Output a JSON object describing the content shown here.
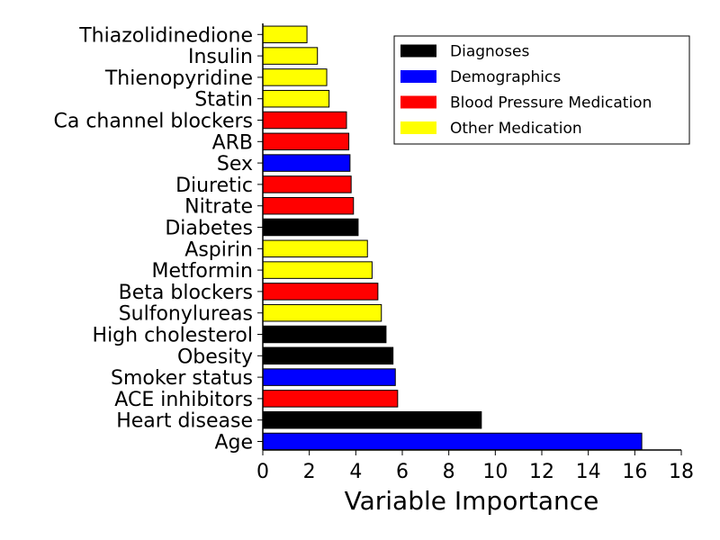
{
  "chart_data": {
    "type": "bar",
    "orientation": "horizontal",
    "title": "",
    "xlabel": "Variable Importance",
    "ylabel": "",
    "xlim": [
      0,
      18
    ],
    "xticks": [
      0,
      2,
      4,
      6,
      8,
      10,
      12,
      14,
      16,
      18
    ],
    "grid": false,
    "legend_position": "top-right",
    "colors": {
      "Diagnoses": "#000000",
      "Demographics": "#0000ff",
      "Blood Pressure Medication": "#ff0000",
      "Other Medication": "#ffff00"
    },
    "legend": [
      "Diagnoses",
      "Demographics",
      "Blood Pressure Medication",
      "Other Medication"
    ],
    "categories": [
      "Age",
      "Heart disease",
      "ACE inhibitors",
      "Smoker status",
      "Obesity",
      "High cholesterol",
      "Sulfonylureas",
      "Beta blockers",
      "Metformin",
      "Aspirin",
      "Diabetes",
      "Nitrate",
      "Diuretic",
      "Sex",
      "ARB",
      "Ca channel blockers",
      "Statin",
      "Thienopyridine",
      "Insulin",
      "Thiazolidinedione"
    ],
    "values": [
      16.3,
      9.4,
      5.8,
      5.7,
      5.6,
      5.3,
      5.1,
      4.95,
      4.7,
      4.5,
      4.1,
      3.9,
      3.8,
      3.75,
      3.7,
      3.6,
      2.85,
      2.75,
      2.35,
      1.9
    ],
    "groups": [
      "Demographics",
      "Diagnoses",
      "Blood Pressure Medication",
      "Demographics",
      "Diagnoses",
      "Diagnoses",
      "Other Medication",
      "Blood Pressure Medication",
      "Other Medication",
      "Other Medication",
      "Diagnoses",
      "Blood Pressure Medication",
      "Blood Pressure Medication",
      "Demographics",
      "Blood Pressure Medication",
      "Blood Pressure Medication",
      "Other Medication",
      "Other Medication",
      "Other Medication",
      "Other Medication"
    ]
  }
}
